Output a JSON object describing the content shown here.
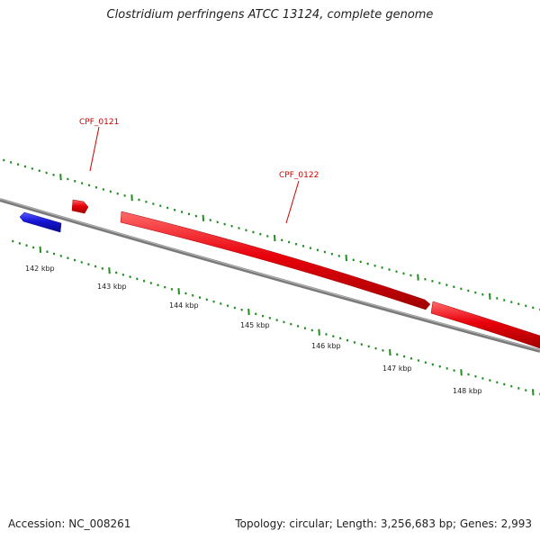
{
  "title": "Clostridium perfringens ATCC 13124, complete genome",
  "footer": {
    "accession": "Accession: NC_008261",
    "topology": "Topology: circular; Length: 3,256,683 bp; Genes: 2,993"
  },
  "genes": [
    {
      "name": "CPF_0121",
      "strand": "forward",
      "color": "#e8000b"
    },
    {
      "name": "CPF_0122",
      "strand": "forward",
      "color": "#e8000b"
    },
    {
      "name": "",
      "strand": "reverse",
      "color": "#1414d4"
    }
  ],
  "scale_labels": [
    "142 kbp",
    "143 kbp",
    "144 kbp",
    "145 kbp",
    "146 kbp",
    "147 kbp",
    "148 kbp"
  ],
  "colors": {
    "genome_line": "#808080",
    "tick": "#228b22",
    "forward_gene": "#e8000b",
    "reverse_gene": "#1414d4"
  }
}
